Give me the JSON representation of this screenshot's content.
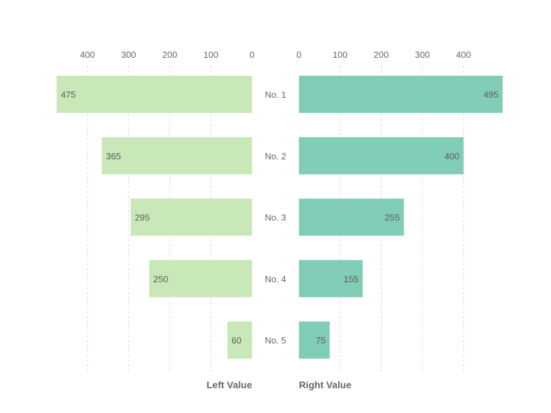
{
  "chart_data": {
    "type": "bar",
    "orientation": "horizontal-butterfly",
    "categories": [
      "No. 1",
      "No. 2",
      "No. 3",
      "No. 4",
      "No. 5"
    ],
    "series": [
      {
        "name": "Left Value",
        "values": [
          475,
          365,
          295,
          250,
          60
        ],
        "color": "#c8e8b8"
      },
      {
        "name": "Right Value",
        "values": [
          495,
          400,
          255,
          155,
          75
        ],
        "color": "#82cdb7"
      }
    ],
    "left_axis": {
      "label": "Left Value",
      "ticks": [
        400,
        300,
        200,
        100,
        0
      ],
      "direction": "reversed"
    },
    "right_axis": {
      "label": "Right Value",
      "ticks": [
        0,
        100,
        200,
        300,
        400
      ]
    },
    "grid": true,
    "grid_style": "dashed vertical",
    "tick_position": "top"
  }
}
